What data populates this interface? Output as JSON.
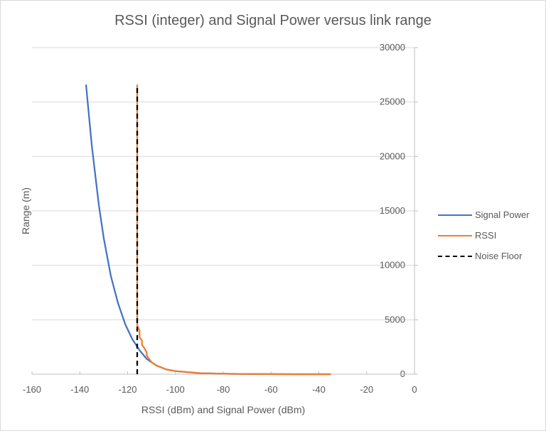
{
  "chart_data": {
    "type": "line",
    "title": "RSSI (integer) and Signal Power versus link range",
    "xlabel": "RSSI (dBm) and Signal Power (dBm)",
    "ylabel": "Range (m)",
    "xlim": [
      -160,
      0
    ],
    "ylim": [
      0,
      30000
    ],
    "x_ticks": [
      -160,
      -140,
      -120,
      -100,
      -80,
      -60,
      -40,
      -20,
      0
    ],
    "y_ticks": [
      0,
      5000,
      10000,
      15000,
      20000,
      25000,
      30000
    ],
    "y_axis_position": "right",
    "grid": {
      "horizontal": true,
      "vertical": false
    },
    "legend_position": "right",
    "series": [
      {
        "name": "Signal Power",
        "color": "#4472c4",
        "style": "solid",
        "points": [
          [
            -137.4,
            26600
          ],
          [
            -135,
            21000
          ],
          [
            -132,
            15500
          ],
          [
            -130,
            12500
          ],
          [
            -127,
            9000
          ],
          [
            -124,
            6500
          ],
          [
            -121,
            4600
          ],
          [
            -118,
            3200
          ],
          [
            -115,
            2200
          ],
          [
            -112,
            1400
          ],
          [
            -108,
            800
          ],
          [
            -104,
            450
          ],
          [
            -100,
            280
          ],
          [
            -90,
            100
          ],
          [
            -80,
            40
          ],
          [
            -70,
            15
          ],
          [
            -60,
            5
          ],
          [
            -50,
            2
          ],
          [
            -35,
            0
          ]
        ]
      },
      {
        "name": "RSSI",
        "color": "#ed7d31",
        "style": "solid",
        "points": [
          [
            -116,
            26600
          ],
          [
            -116,
            4500
          ],
          [
            -115,
            4000
          ],
          [
            -115,
            3400
          ],
          [
            -114,
            3100
          ],
          [
            -114,
            2700
          ],
          [
            -113,
            2400
          ],
          [
            -112,
            2000
          ],
          [
            -112,
            1700
          ],
          [
            -111,
            1400
          ],
          [
            -110,
            1100
          ],
          [
            -108,
            800
          ],
          [
            -104,
            450
          ],
          [
            -100,
            280
          ],
          [
            -90,
            100
          ],
          [
            -80,
            40
          ],
          [
            -70,
            15
          ],
          [
            -60,
            5
          ],
          [
            -50,
            2
          ],
          [
            -35,
            0
          ]
        ]
      },
      {
        "name": "Noise Floor",
        "color": "#000000",
        "style": "dashed",
        "points": [
          [
            -116,
            0
          ],
          [
            -116,
            26600
          ]
        ]
      }
    ]
  },
  "legend": {
    "items": [
      {
        "label": "Signal Power",
        "color": "#4472c4"
      },
      {
        "label": "RSSI",
        "color": "#ed7d31"
      },
      {
        "label": "Noise Floor",
        "color": "#000000"
      }
    ]
  }
}
